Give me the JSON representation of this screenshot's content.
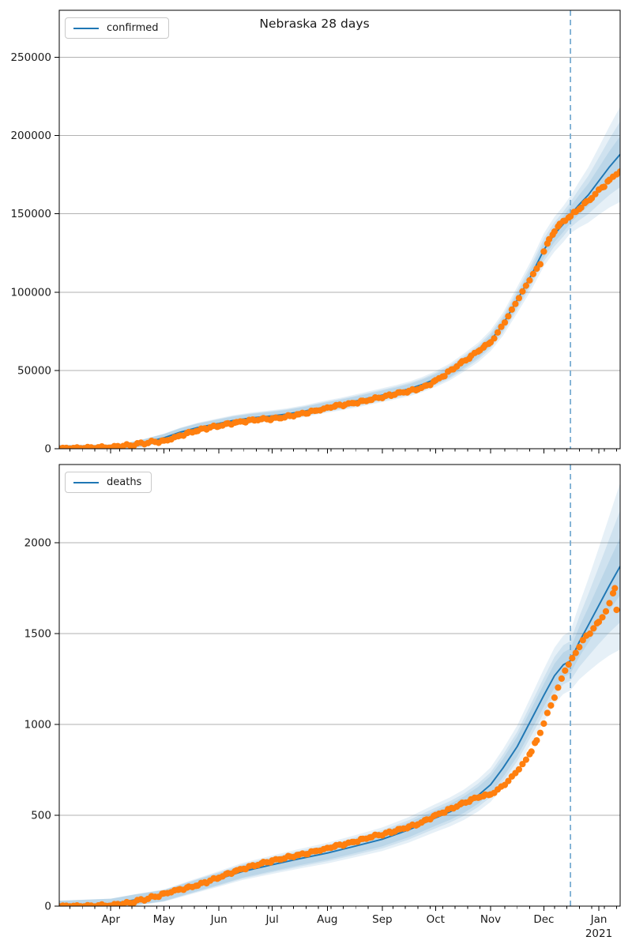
{
  "figure_title": "Nebraska 28 days",
  "colors": {
    "actual_dots": "#ff7f0e",
    "model_line": "#1f77b4",
    "uncertainty_band": "#1f77b4",
    "forecast_vline": "#7aadd2",
    "grid": "#b2b2b2",
    "axis": "#000000",
    "text": "#1a1a1a"
  },
  "chart_data": {
    "type": "line",
    "title": "Nebraska 28 days",
    "subtitle": "",
    "legend_position": "upper left",
    "grid": "horizontal only",
    "x_axis": {
      "unit": "days since 2020-03-01",
      "min": 2,
      "max": 318,
      "forecast_start_day": 290,
      "forecast_horizon_days": 28,
      "minor_tick_start": 8,
      "minor_tick_step_days": 7,
      "ticks": [
        {
          "label": "Apr",
          "day": 31
        },
        {
          "label": "May",
          "day": 61
        },
        {
          "label": "Jun",
          "day": 92
        },
        {
          "label": "Jul",
          "day": 122
        },
        {
          "label": "Aug",
          "day": 153
        },
        {
          "label": "Sep",
          "day": 184
        },
        {
          "label": "Oct",
          "day": 214
        },
        {
          "label": "Nov",
          "day": 245
        },
        {
          "label": "Dec",
          "day": 275
        },
        {
          "label": "Jan",
          "day": 306,
          "sublabel": "2021"
        }
      ]
    },
    "subplots": [
      {
        "id": "confirmed",
        "legend": "confirmed",
        "ylim": [
          0,
          280000
        ],
        "yticks": [
          0,
          50000,
          100000,
          150000,
          200000,
          250000
        ],
        "show_x_labels": false,
        "uncertainty_bands": {
          "opacity": 0.11,
          "abs_pad": 2200,
          "levels": [
            {
              "fit_frac": 0.065,
              "end_frac": 0.15
            },
            {
              "fit_frac": 0.04,
              "end_frac": 0.1
            },
            {
              "fit_frac": 0.02,
              "end_frac": 0.05
            }
          ]
        },
        "series": [
          {
            "name": "model",
            "type": "line",
            "points": [
              [
                2,
                150
              ],
              [
                20,
                300
              ],
              [
                31,
                500
              ],
              [
                40,
                1400
              ],
              [
                50,
                3800
              ],
              [
                61,
                7000
              ],
              [
                70,
                10500
              ],
              [
                80,
                13500
              ],
              [
                92,
                16200
              ],
              [
                100,
                18000
              ],
              [
                110,
                19600
              ],
              [
                122,
                21000
              ],
              [
                130,
                22100
              ],
              [
                140,
                24000
              ],
              [
                153,
                27000
              ],
              [
                160,
                28400
              ],
              [
                170,
                30700
              ],
              [
                184,
                34200
              ],
              [
                192,
                36200
              ],
              [
                200,
                38500
              ],
              [
                207,
                41200
              ],
              [
                214,
                44500
              ],
              [
                222,
                49000
              ],
              [
                230,
                55000
              ],
              [
                238,
                61500
              ],
              [
                245,
                69000
              ],
              [
                252,
                79500
              ],
              [
                260,
                95000
              ],
              [
                268,
                111000
              ],
              [
                275,
                127000
              ],
              [
                281,
                137000
              ],
              [
                286,
                143500
              ],
              [
                290,
                149500
              ],
              [
                295,
                156000
              ],
              [
                300,
                162000
              ],
              [
                306,
                171000
              ],
              [
                312,
                180000
              ],
              [
                318,
                188000
              ]
            ]
          },
          {
            "name": "actual",
            "type": "scatter",
            "points": [
              [
                2,
                300
              ],
              [
                8,
                400
              ],
              [
                14,
                500
              ],
              [
                20,
                700
              ],
              [
                26,
                900
              ],
              [
                31,
                1100
              ],
              [
                36,
                1500
              ],
              [
                40,
                2000
              ],
              [
                44,
                2600
              ],
              [
                48,
                3300
              ],
              [
                52,
                3900
              ],
              [
                56,
                4400
              ],
              [
                61,
                4900
              ],
              [
                65,
                6200
              ],
              [
                70,
                8300
              ],
              [
                75,
                10200
              ],
              [
                80,
                11800
              ],
              [
                85,
                13000
              ],
              [
                92,
                14600
              ],
              [
                97,
                15900
              ],
              [
                102,
                16900
              ],
              [
                107,
                17600
              ],
              [
                112,
                18200
              ],
              [
                117,
                18700
              ],
              [
                122,
                19200
              ],
              [
                127,
                20000
              ],
              [
                132,
                20900
              ],
              [
                137,
                21900
              ],
              [
                142,
                23000
              ],
              [
                147,
                24300
              ],
              [
                153,
                26000
              ],
              [
                158,
                27200
              ],
              [
                163,
                28300
              ],
              [
                168,
                29300
              ],
              [
                173,
                30300
              ],
              [
                178,
                31500
              ],
              [
                184,
                33000
              ],
              [
                189,
                34300
              ],
              [
                194,
                35500
              ],
              [
                199,
                36600
              ],
              [
                204,
                38200
              ],
              [
                209,
                40200
              ],
              [
                214,
                43500
              ],
              [
                219,
                47000
              ],
              [
                224,
                51000
              ],
              [
                229,
                55000
              ],
              [
                234,
                59000
              ],
              [
                239,
                63500
              ],
              [
                242,
                65500
              ],
              [
                245,
                68000
              ],
              [
                249,
                74000
              ],
              [
                253,
                81000
              ],
              [
                257,
                88500
              ],
              [
                261,
                96500
              ],
              [
                265,
                104000
              ],
              [
                269,
                111500
              ],
              [
                273,
                118000
              ],
              [
                275,
                126000
              ],
              [
                278,
                133000
              ],
              [
                281,
                139000
              ],
              [
                284,
                143000
              ],
              [
                287,
                146000
              ],
              [
                290,
                148500
              ],
              [
                293,
                151500
              ],
              [
                296,
                154500
              ],
              [
                299,
                157500
              ],
              [
                302,
                160500
              ],
              [
                306,
                165000
              ],
              [
                309,
                168000
              ],
              [
                312,
                171500
              ],
              [
                316,
                175500
              ],
              [
                318,
                177000
              ]
            ]
          }
        ]
      },
      {
        "id": "deaths",
        "legend": "deaths",
        "ylim": [
          0,
          2430
        ],
        "yticks": [
          0,
          500,
          1000,
          1500,
          2000
        ],
        "show_x_labels": true,
        "uncertainty_bands": {
          "opacity": 0.11,
          "abs_pad": 28,
          "levels": [
            {
              "fit_frac": 0.1,
              "end_frac": 0.23
            },
            {
              "fit_frac": 0.06,
              "end_frac": 0.15
            },
            {
              "fit_frac": 0.03,
              "end_frac": 0.07
            }
          ]
        },
        "series": [
          {
            "name": "model",
            "type": "line",
            "points": [
              [
                2,
                2
              ],
              [
                31,
                12
              ],
              [
                45,
                35
              ],
              [
                61,
                58
              ],
              [
                75,
                100
              ],
              [
                92,
                150
              ],
              [
                105,
                190
              ],
              [
                122,
                228
              ],
              [
                137,
                260
              ],
              [
                153,
                292
              ],
              [
                168,
                328
              ],
              [
                184,
                368
              ],
              [
                199,
                420
              ],
              [
                214,
                485
              ],
              [
                222,
                518
              ],
              [
                230,
                558
              ],
              [
                238,
                610
              ],
              [
                245,
                668
              ],
              [
                252,
                760
              ],
              [
                260,
                878
              ],
              [
                268,
                1028
              ],
              [
                275,
                1160
              ],
              [
                281,
                1268
              ],
              [
                286,
                1328
              ],
              [
                290,
                1350
              ],
              [
                295,
                1455
              ],
              [
                300,
                1545
              ],
              [
                306,
                1655
              ],
              [
                312,
                1765
              ],
              [
                318,
                1870
              ]
            ]
          },
          {
            "name": "actual",
            "type": "scatter",
            "points": [
              [
                2,
                1
              ],
              [
                14,
                1
              ],
              [
                20,
                2
              ],
              [
                26,
                4
              ],
              [
                31,
                6
              ],
              [
                36,
                10
              ],
              [
                40,
                15
              ],
              [
                44,
                24
              ],
              [
                48,
                33
              ],
              [
                52,
                42
              ],
              [
                56,
                52
              ],
              [
                61,
                68
              ],
              [
                65,
                78
              ],
              [
                70,
                92
              ],
              [
                75,
                103
              ],
              [
                80,
                117
              ],
              [
                85,
                132
              ],
              [
                92,
                158
              ],
              [
                97,
                178
              ],
              [
                102,
                196
              ],
              [
                107,
                210
              ],
              [
                112,
                222
              ],
              [
                117,
                236
              ],
              [
                122,
                250
              ],
              [
                127,
                262
              ],
              [
                132,
                272
              ],
              [
                137,
                281
              ],
              [
                142,
                290
              ],
              [
                147,
                303
              ],
              [
                153,
                318
              ],
              [
                158,
                330
              ],
              [
                163,
                342
              ],
              [
                168,
                355
              ],
              [
                173,
                368
              ],
              [
                178,
                382
              ],
              [
                184,
                395
              ],
              [
                189,
                408
              ],
              [
                194,
                420
              ],
              [
                199,
                435
              ],
              [
                204,
                452
              ],
              [
                209,
                475
              ],
              [
                214,
                500
              ],
              [
                219,
                520
              ],
              [
                224,
                540
              ],
              [
                229,
                562
              ],
              [
                234,
                585
              ],
              [
                239,
                605
              ],
              [
                242,
                608
              ],
              [
                245,
                615
              ],
              [
                249,
                640
              ],
              [
                253,
                670
              ],
              [
                257,
                710
              ],
              [
                261,
                755
              ],
              [
                265,
                805
              ],
              [
                268,
                855
              ],
              [
                271,
                910
              ],
              [
                273,
                955
              ],
              [
                275,
                1005
              ],
              [
                277,
                1060
              ],
              [
                279,
                1105
              ],
              [
                281,
                1150
              ],
              [
                283,
                1200
              ],
              [
                285,
                1250
              ],
              [
                287,
                1300
              ],
              [
                289,
                1330
              ],
              [
                291,
                1360
              ],
              [
                293,
                1395
              ],
              [
                295,
                1430
              ],
              [
                297,
                1460
              ],
              [
                299,
                1485
              ],
              [
                301,
                1505
              ],
              [
                303,
                1530
              ],
              [
                306,
                1560
              ],
              [
                308,
                1590
              ],
              [
                310,
                1625
              ],
              [
                312,
                1665
              ],
              [
                314,
                1720
              ],
              [
                315,
                1755
              ],
              [
                316,
                1630
              ]
            ]
          }
        ]
      }
    ]
  }
}
